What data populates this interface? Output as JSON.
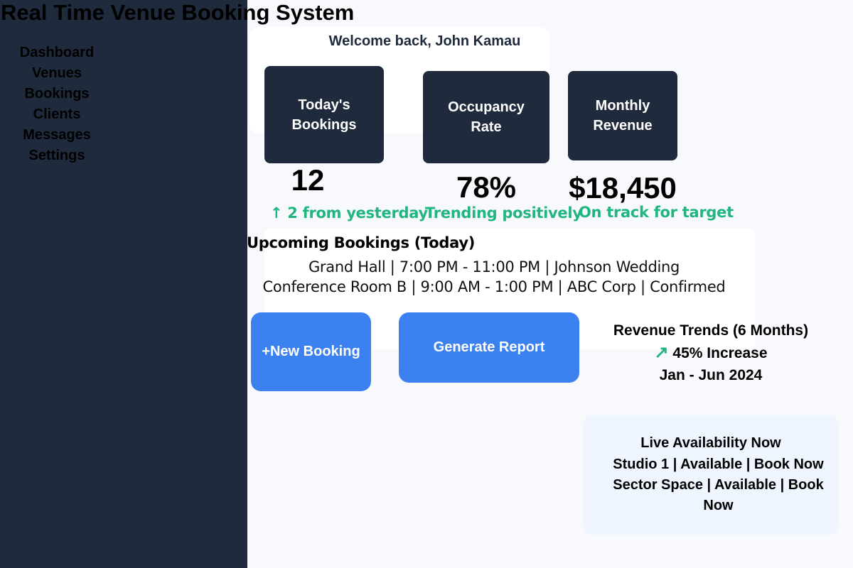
{
  "app": {
    "title": "Real Time Venue Booking System"
  },
  "sidebar": {
    "items": [
      {
        "label": "Dashboard"
      },
      {
        "label": "Venues"
      },
      {
        "label": "Bookings"
      },
      {
        "label": "Clients"
      },
      {
        "label": "Messages"
      },
      {
        "label": "Settings"
      }
    ]
  },
  "welcome": {
    "text": "Welcome back, John Kamau"
  },
  "stats": [
    {
      "label": "Today's\nBookings",
      "value": "12",
      "note": "↑ 2 from yesterday"
    },
    {
      "label": "Occupancy\nRate",
      "value": "78%",
      "note": "Trending positively"
    },
    {
      "label": "Monthly\nRevenue",
      "value": "$18,450",
      "note": "On track for target"
    }
  ],
  "upcoming": {
    "title": "Upcoming Bookings (Today)",
    "items": [
      "Grand Hall | 7:00 PM - 11:00 PM | Johnson Wedding",
      "Conference Room B | 9:00 AM - 1:00 PM | ABC Corp | Confirmed"
    ]
  },
  "actions": {
    "new_booking": "+New Booking",
    "generate_report": "Generate Report"
  },
  "trends": {
    "title": "Revenue Trends (6 Months)",
    "arrow": "↗",
    "increase": "45% Increase",
    "period": "Jan - Jun 2024"
  },
  "availability": {
    "title": "Live Availability Now",
    "line1": "Studio 1 | Available | Book Now",
    "line2": "Sector Space | Available | Book Now"
  },
  "colors": {
    "sidebar": "#1f2a3c",
    "card_dark": "#1f2a3c",
    "accent_blue": "#3b82f0",
    "positive_green": "#21b57f",
    "availability_bg": "#eef5fe"
  }
}
